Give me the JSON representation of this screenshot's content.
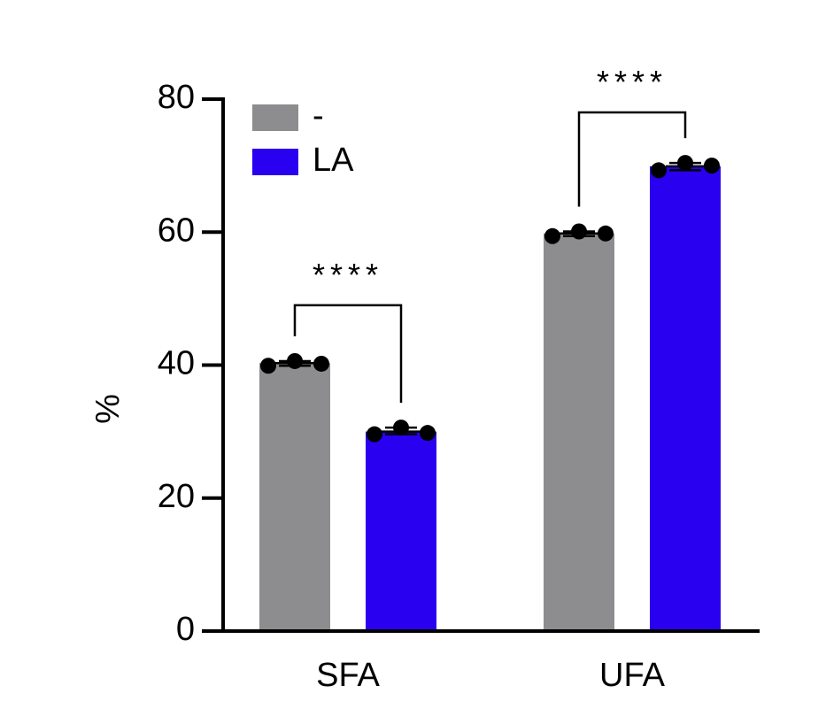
{
  "chart_data": {
    "type": "bar",
    "categories": [
      "SFA",
      "UFA"
    ],
    "ylabel": "%",
    "ylim": [
      0,
      80
    ],
    "yticks": [
      0,
      20,
      40,
      60,
      80
    ],
    "legend_position": "top-left",
    "series": [
      {
        "name": "-",
        "color": "#8d8d90",
        "values": [
          40.3,
          59.8
        ],
        "points": [
          [
            39.9,
            40.6,
            40.2
          ],
          [
            59.4,
            60.1,
            59.8
          ]
        ]
      },
      {
        "name": "LA",
        "color": "#2a00f0",
        "values": [
          30.0,
          69.9
        ],
        "points": [
          [
            29.6,
            30.6,
            29.8
          ],
          [
            69.3,
            70.4,
            70.0
          ]
        ]
      }
    ],
    "annotations": [
      {
        "label": "****",
        "category": "SFA",
        "bracket_y": 49
      },
      {
        "label": "****",
        "category": "UFA",
        "bracket_y": 78
      }
    ]
  }
}
